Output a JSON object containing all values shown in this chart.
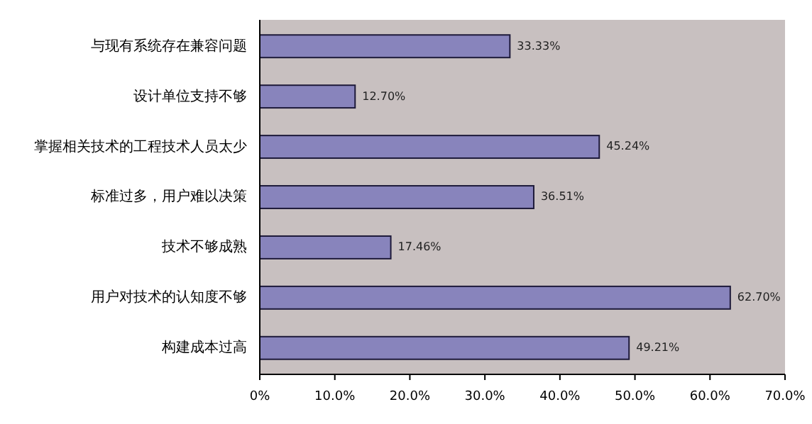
{
  "chart_data": {
    "type": "bar",
    "orientation": "horizontal",
    "categories": [
      "与现有系统存在兼容问题",
      "设计单位支持不够",
      "掌握相关技术的工程技术人员太少",
      "标准过多，用户难以决策",
      "技术不够成熟",
      "用户对技术的认知度不够",
      "构建成本过高"
    ],
    "values": [
      33.33,
      12.7,
      45.24,
      36.51,
      17.46,
      62.7,
      49.21
    ],
    "value_labels": [
      "33.33%",
      "12.70%",
      "45.24%",
      "36.51%",
      "17.46%",
      "62.70%",
      "49.21%"
    ],
    "color": "#8884bc",
    "xlim": [
      0,
      70
    ],
    "xticks": [
      {
        "value": 0,
        "label": "0%"
      },
      {
        "value": 10,
        "label": "10.0%"
      },
      {
        "value": 20,
        "label": "20.0%"
      },
      {
        "value": 30,
        "label": "30.0%"
      },
      {
        "value": 40,
        "label": "40.0%"
      },
      {
        "value": 50,
        "label": "50.0%"
      },
      {
        "value": 60,
        "label": "60.0%"
      },
      {
        "value": 70,
        "label": "70.0%"
      }
    ],
    "grid": false
  }
}
